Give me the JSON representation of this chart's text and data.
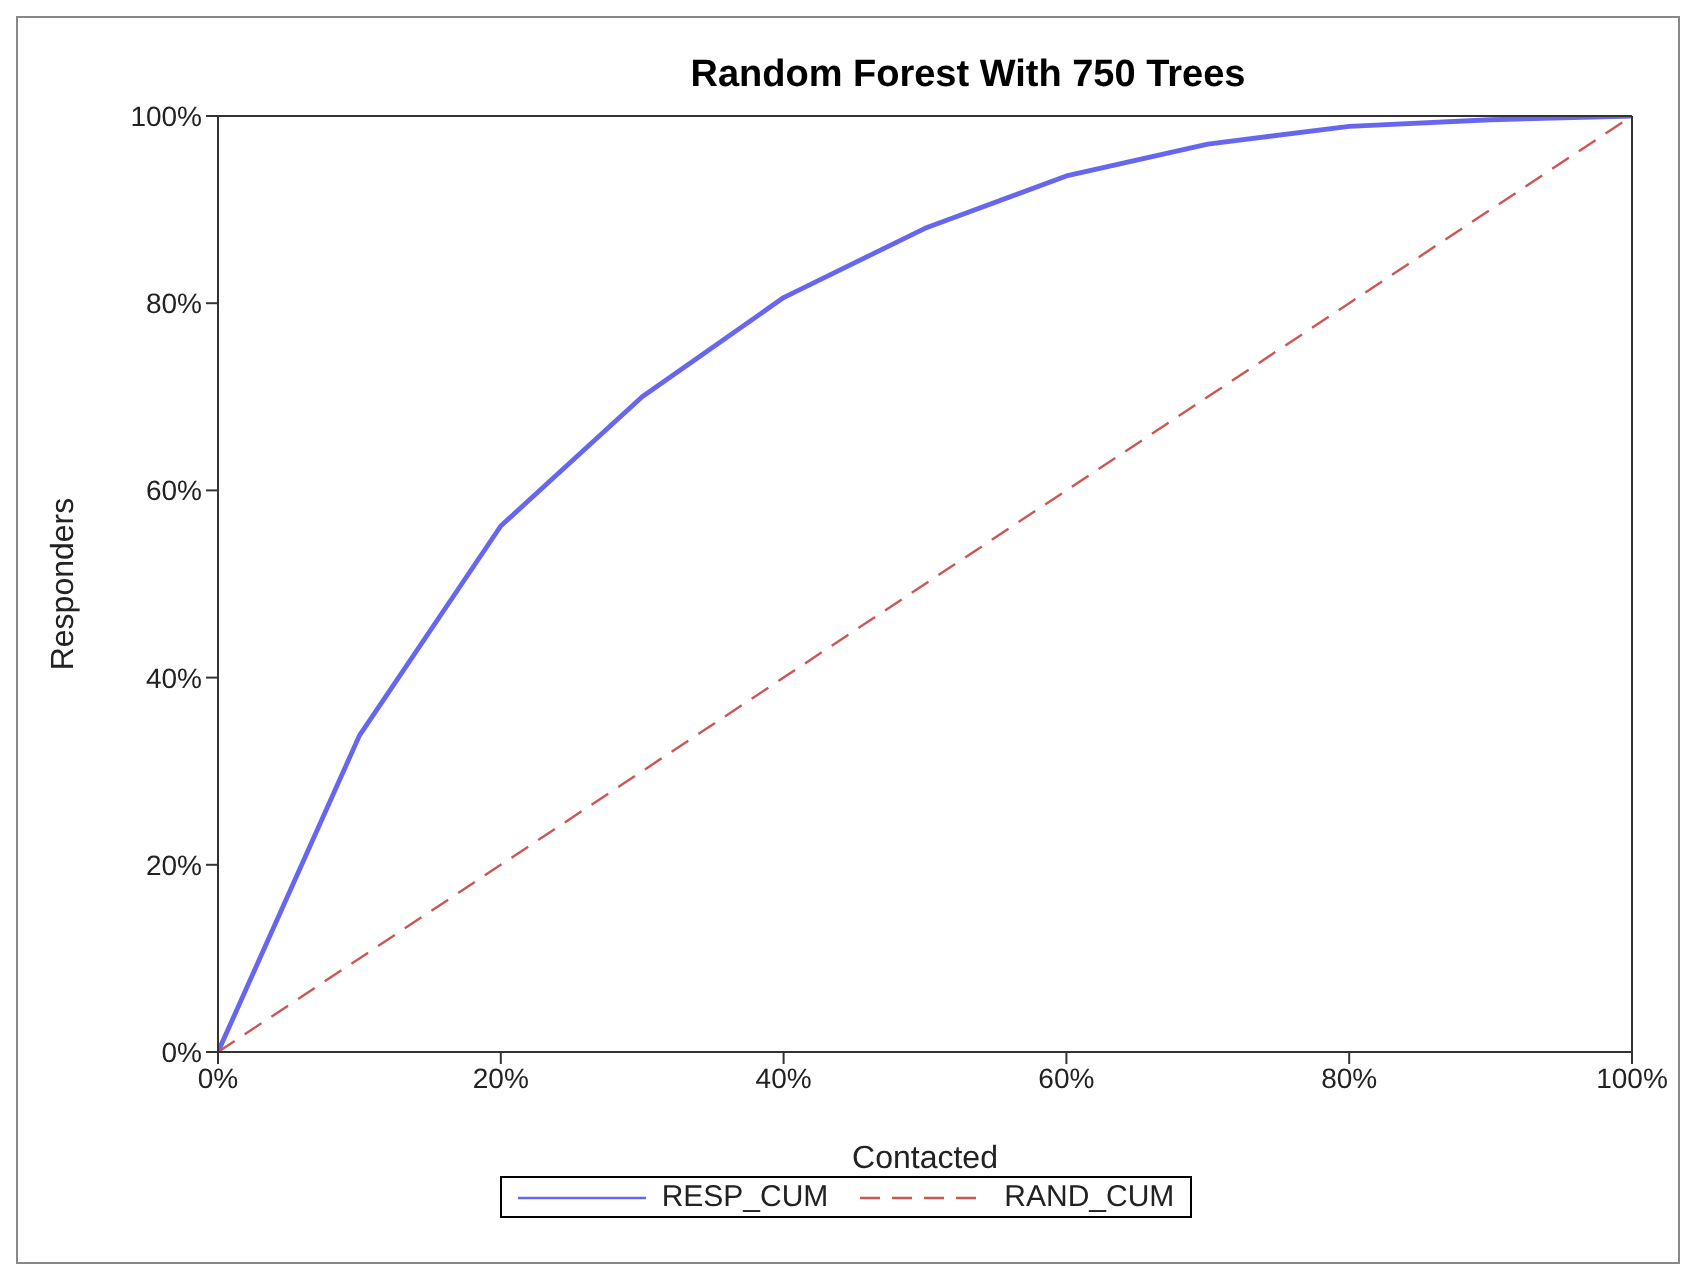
{
  "chart_data": {
    "type": "line",
    "title": "Random Forest With 750 Trees",
    "xlabel": "Contacted",
    "ylabel": "Responders",
    "x": [
      0,
      10,
      20,
      30,
      40,
      50,
      60,
      70,
      80,
      90,
      100
    ],
    "series": [
      {
        "name": "RESP_CUM",
        "color": "#6666ee",
        "line_style": "solid",
        "values": [
          0,
          33.8,
          56.2,
          70,
          80.6,
          88,
          93.6,
          97,
          98.9,
          99.6,
          100
        ]
      },
      {
        "name": "RAND_CUM",
        "color": "#cc5555",
        "line_style": "dashed",
        "values": [
          0,
          10,
          20,
          30,
          40,
          50,
          60,
          70,
          80,
          90,
          100
        ]
      }
    ],
    "xlim": [
      0,
      100
    ],
    "ylim": [
      0,
      100
    ],
    "xticks": [
      {
        "value": 0,
        "label": "0%"
      },
      {
        "value": 20,
        "label": "20%"
      },
      {
        "value": 40,
        "label": "40%"
      },
      {
        "value": 60,
        "label": "60%"
      },
      {
        "value": 80,
        "label": "80%"
      },
      {
        "value": 100,
        "label": "100%"
      }
    ],
    "yticks": [
      {
        "value": 0,
        "label": "0%"
      },
      {
        "value": 20,
        "label": "20%"
      },
      {
        "value": 40,
        "label": "40%"
      },
      {
        "value": 60,
        "label": "60%"
      },
      {
        "value": 80,
        "label": "80%"
      },
      {
        "value": 100,
        "label": "100%"
      }
    ],
    "grid": false,
    "legend": "bottom",
    "marker": "none"
  }
}
